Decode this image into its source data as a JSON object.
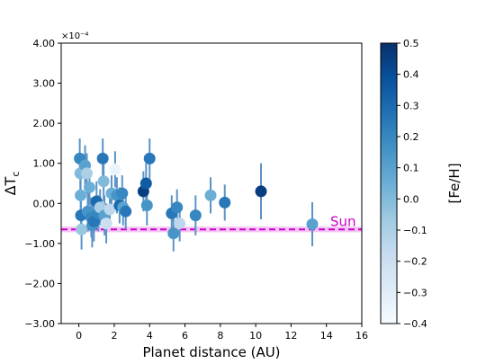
{
  "chart_data": {
    "type": "scatter",
    "xlabel": "Planet distance (AU)",
    "ylabel_base": "ΔT",
    "ylabel_sub": "c",
    "y_scale_label": "×10⁻⁴",
    "xlim": [
      -1,
      16
    ],
    "ylim": [
      -3,
      4
    ],
    "x_ticks": [
      0,
      2,
      4,
      6,
      8,
      10,
      12,
      14,
      16
    ],
    "x_tick_labels": [
      "0",
      "2",
      "4",
      "6",
      "8",
      "10",
      "12",
      "14",
      "16"
    ],
    "y_ticks": [
      -3,
      -2,
      -1,
      0,
      1,
      2,
      3,
      4
    ],
    "y_tick_labels": [
      "−3.00",
      "−2.00",
      "−1.00",
      "0.00",
      "1.00",
      "2.00",
      "3.00",
      "4.00"
    ],
    "colorbar": {
      "label": "[Fe/H]",
      "range": [
        -0.4,
        0.5
      ],
      "ticks": [
        -0.4,
        -0.3,
        -0.2,
        -0.1,
        0.0,
        0.1,
        0.2,
        0.3,
        0.4,
        0.5
      ],
      "tick_labels": [
        "−0.4",
        "−0.3",
        "−0.2",
        "−0.1",
        "0.0",
        "0.1",
        "0.2",
        "0.3",
        "0.4",
        "0.5"
      ],
      "colormap": "Blues"
    },
    "reference_line": {
      "label": "Sun",
      "y": -0.65,
      "band": [
        -0.72,
        -0.58
      ],
      "color": "#cc00cc",
      "band_color": "#f0b0f0"
    },
    "error_bar_color": "#5b93c7",
    "points": [
      {
        "x": 0.05,
        "y": 1.12,
        "err": 0.5,
        "feh": 0.2
      },
      {
        "x": 0.08,
        "y": 0.75,
        "err": 0.5,
        "feh": 0.0
      },
      {
        "x": 0.1,
        "y": 0.2,
        "err": 0.45,
        "feh": 0.05
      },
      {
        "x": 0.12,
        "y": -0.3,
        "err": 0.45,
        "feh": 0.25
      },
      {
        "x": 0.15,
        "y": -0.65,
        "err": 0.5,
        "feh": -0.05
      },
      {
        "x": 0.35,
        "y": 0.95,
        "err": 0.5,
        "feh": 0.1
      },
      {
        "x": 0.45,
        "y": 0.75,
        "err": 0.5,
        "feh": -0.1
      },
      {
        "x": 0.5,
        "y": -0.2,
        "err": 0.5,
        "feh": 0.15
      },
      {
        "x": 0.6,
        "y": 0.4,
        "err": 0.45,
        "feh": 0.05
      },
      {
        "x": 0.7,
        "y": -0.35,
        "err": 0.5,
        "feh": 0.2
      },
      {
        "x": 0.75,
        "y": -0.55,
        "err": 0.55,
        "feh": 0.15
      },
      {
        "x": 0.85,
        "y": -0.45,
        "err": 0.5,
        "feh": 0.25
      },
      {
        "x": 1.0,
        "y": 0.05,
        "err": 0.5,
        "feh": 0.3
      },
      {
        "x": 1.1,
        "y": -0.25,
        "err": 0.45,
        "feh": 0.2
      },
      {
        "x": 1.2,
        "y": -0.1,
        "err": 0.45,
        "feh": -0.1
      },
      {
        "x": 1.35,
        "y": 1.12,
        "err": 0.5,
        "feh": 0.25
      },
      {
        "x": 1.4,
        "y": 0.55,
        "err": 0.5,
        "feh": 0.0
      },
      {
        "x": 1.45,
        "y": -0.3,
        "err": 0.5,
        "feh": 0.1
      },
      {
        "x": 1.55,
        "y": -0.5,
        "err": 0.5,
        "feh": -0.2
      },
      {
        "x": 1.75,
        "y": -0.15,
        "err": 0.45,
        "feh": -0.15
      },
      {
        "x": 1.85,
        "y": 0.25,
        "err": 0.45,
        "feh": 0.05
      },
      {
        "x": 2.05,
        "y": 0.85,
        "err": 0.45,
        "feh": -0.35
      },
      {
        "x": 2.15,
        "y": 0.2,
        "err": 0.45,
        "feh": 0.15
      },
      {
        "x": 2.3,
        "y": -0.05,
        "err": 0.45,
        "feh": 0.3
      },
      {
        "x": 2.45,
        "y": 0.25,
        "err": 0.45,
        "feh": 0.2
      },
      {
        "x": 2.5,
        "y": -0.1,
        "err": 0.45,
        "feh": 0.1
      },
      {
        "x": 2.65,
        "y": -0.2,
        "err": 0.45,
        "feh": 0.25
      },
      {
        "x": 3.65,
        "y": 0.3,
        "err": 0.5,
        "feh": 0.45
      },
      {
        "x": 3.8,
        "y": 0.5,
        "err": 0.5,
        "feh": 0.35
      },
      {
        "x": 3.85,
        "y": -0.05,
        "err": 0.5,
        "feh": 0.15
      },
      {
        "x": 4.0,
        "y": 1.12,
        "err": 0.5,
        "feh": 0.25
      },
      {
        "x": 5.25,
        "y": -0.25,
        "err": 0.45,
        "feh": 0.25
      },
      {
        "x": 5.35,
        "y": -0.75,
        "err": 0.45,
        "feh": 0.15
      },
      {
        "x": 5.55,
        "y": -0.1,
        "err": 0.45,
        "feh": 0.2
      },
      {
        "x": 5.7,
        "y": -0.5,
        "err": 0.45,
        "feh": -0.15
      },
      {
        "x": 6.6,
        "y": -0.3,
        "err": 0.5,
        "feh": 0.2
      },
      {
        "x": 7.45,
        "y": 0.2,
        "err": 0.45,
        "feh": 0.05
      },
      {
        "x": 8.25,
        "y": 0.02,
        "err": 0.45,
        "feh": 0.25
      },
      {
        "x": 10.3,
        "y": 0.3,
        "err": 0.7,
        "feh": 0.45
      },
      {
        "x": 13.2,
        "y": -0.52,
        "err": 0.55,
        "feh": 0.1
      }
    ]
  }
}
